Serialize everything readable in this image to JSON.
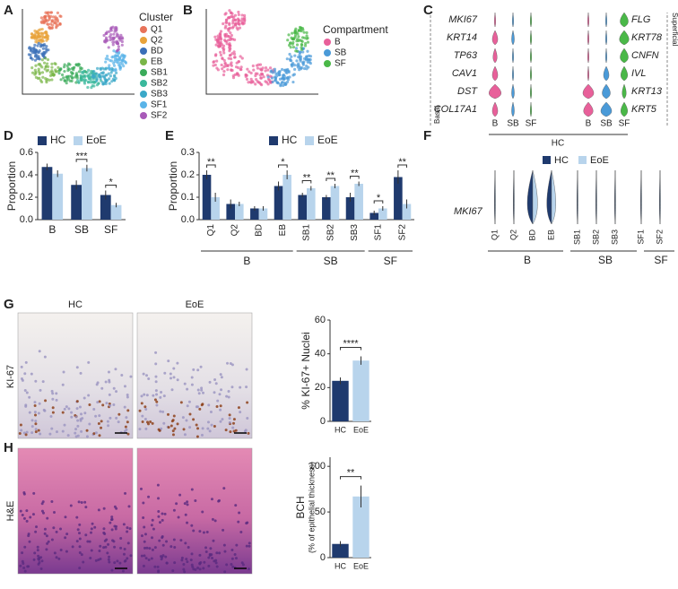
{
  "panel_labels": [
    "A",
    "B",
    "C",
    "D",
    "E",
    "F",
    "G",
    "H"
  ],
  "umap_cluster": {
    "title": "Cluster",
    "items": [
      {
        "label": "Q1",
        "color": "#e8735a"
      },
      {
        "label": "Q2",
        "color": "#e8a33a"
      },
      {
        "label": "BD",
        "color": "#3a6fb8"
      },
      {
        "label": "EB",
        "color": "#7ab648"
      },
      {
        "label": "SB1",
        "color": "#3aab5a"
      },
      {
        "label": "SB2",
        "color": "#3ab89c"
      },
      {
        "label": "SB3",
        "color": "#3aa8c8"
      },
      {
        "label": "SF1",
        "color": "#5ab4e8"
      },
      {
        "label": "SF2",
        "color": "#a85ab8"
      }
    ]
  },
  "umap_compartment": {
    "title": "Compartment",
    "items": [
      {
        "label": "B",
        "color": "#e8609a"
      },
      {
        "label": "SB",
        "color": "#4a9ad8"
      },
      {
        "label": "SF",
        "color": "#4ab848"
      }
    ]
  },
  "violin_c": {
    "genes_left": [
      "MKI67",
      "KRT14",
      "TP63",
      "CAV1",
      "DST",
      "COL17A1"
    ],
    "genes_right": [
      "FLG",
      "KRT78",
      "CNFN",
      "IVL",
      "KRT13",
      "KRT5"
    ],
    "x_labels": [
      "B",
      "SB",
      "SF"
    ],
    "group": "HC",
    "left_axis": "Basal",
    "right_axis": "Superficial"
  },
  "violin_f": {
    "gene": "MKI67",
    "legend": [
      "HC",
      "EoE"
    ],
    "categories": [
      "Q1",
      "Q2",
      "BD",
      "EB",
      "SB1",
      "SB2",
      "SB3",
      "SF1",
      "SF2"
    ],
    "groups": [
      "B",
      "SB",
      "SF"
    ]
  },
  "histology": {
    "columns": [
      "HC",
      "EoE"
    ],
    "rows": [
      "KI-67",
      "H&E"
    ]
  },
  "chart_data": [
    {
      "type": "bar",
      "ylabel": "Proportion",
      "categories": [
        "B",
        "SB",
        "SF"
      ],
      "series": [
        {
          "name": "HC",
          "color": "#1f3a6e",
          "values": [
            0.47,
            0.31,
            0.22
          ],
          "errors": [
            0.03,
            0.04,
            0.04
          ]
        },
        {
          "name": "EoE",
          "color": "#b8d4ec",
          "values": [
            0.41,
            0.46,
            0.13
          ],
          "errors": [
            0.03,
            0.03,
            0.02
          ]
        }
      ],
      "significance": [
        null,
        "***",
        "*"
      ],
      "ylim": [
        0,
        0.6
      ],
      "yticks": [
        {
          "value": 0,
          "label": "0.0"
        },
        0.2,
        0.4,
        0.6
      ]
    },
    {
      "type": "bar",
      "ylabel": "Proportion",
      "categories": [
        "Q1",
        "Q2",
        "BD",
        "EB",
        "SB1",
        "SB2",
        "SB3",
        "SF1",
        "SF2"
      ],
      "series": [
        {
          "name": "HC",
          "color": "#1f3a6e",
          "values": [
            0.2,
            0.07,
            0.05,
            0.15,
            0.11,
            0.1,
            0.1,
            0.03,
            0.19
          ],
          "errors": [
            0.02,
            0.02,
            0.01,
            0.02,
            0.01,
            0.01,
            0.02,
            0.01,
            0.03
          ]
        },
        {
          "name": "EoE",
          "color": "#b8d4ec",
          "values": [
            0.1,
            0.07,
            0.05,
            0.2,
            0.14,
            0.15,
            0.16,
            0.05,
            0.07
          ],
          "errors": [
            0.02,
            0.01,
            0.01,
            0.02,
            0.01,
            0.01,
            0.01,
            0.01,
            0.02
          ]
        }
      ],
      "significance": [
        "**",
        null,
        null,
        "*",
        "**",
        "**",
        "**",
        "*",
        "**"
      ],
      "group_labels": [
        "B",
        "SB",
        "SF"
      ],
      "ylim": [
        0,
        0.3
      ],
      "yticks": [
        {
          "value": 0,
          "label": "0.0"
        },
        0.1,
        0.2,
        0.3
      ]
    },
    {
      "type": "bar",
      "ylabel": "% KI-67+ Nuclei",
      "categories": [
        "HC",
        "EoE"
      ],
      "values": [
        24,
        36
      ],
      "errors": [
        2,
        2.5
      ],
      "colors": [
        "#1f3a6e",
        "#b8d4ec"
      ],
      "significance": "****",
      "ylim": [
        0,
        60
      ],
      "yticks": [
        0,
        20,
        40,
        60
      ]
    },
    {
      "type": "bar",
      "ylabel": "BCH",
      "ysublabel": "(% of epithelial thickness)",
      "categories": [
        "HC",
        "EoE"
      ],
      "values": [
        15,
        67
      ],
      "errors": [
        3,
        12
      ],
      "colors": [
        "#1f3a6e",
        "#b8d4ec"
      ],
      "significance": "**",
      "ylim": [
        0,
        110
      ],
      "yticks": [
        0,
        50,
        100
      ]
    }
  ]
}
